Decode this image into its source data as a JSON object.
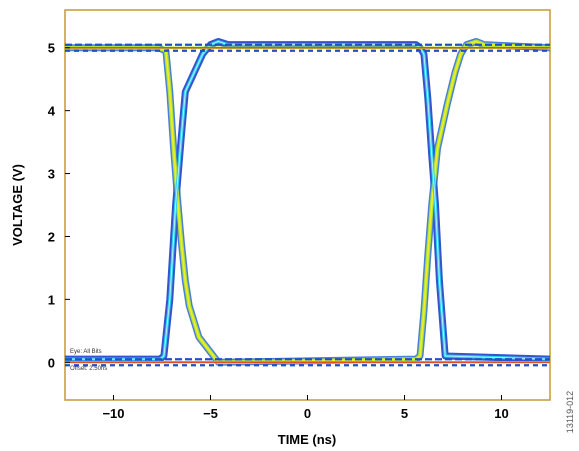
{
  "chart_data": {
    "type": "line",
    "title": "",
    "xlabel": "TIME (ns)",
    "ylabel": "VOLTAGE (V)",
    "xlim": [
      -12.5,
      12.5
    ],
    "ylim": [
      -0.6,
      5.6
    ],
    "x_ticks": [
      -10,
      -5,
      0,
      5,
      10
    ],
    "x_tick_labels": [
      "−10",
      "−5",
      "0",
      "5",
      "10"
    ],
    "y_ticks": [
      0,
      1,
      2,
      3,
      4,
      5
    ],
    "y_tick_labels": [
      "0",
      "1",
      "2",
      "3",
      "4",
      "5"
    ],
    "grid": false,
    "legend": "none",
    "high_level": 5.0,
    "low_level": 0.0,
    "series": [
      {
        "x": [
          -12.5,
          -7.6,
          -7.4,
          -7.1,
          -6.8,
          -6.5,
          -6.3,
          -5.4,
          -5.0,
          -4.6,
          -4.1,
          5.6,
          5.8,
          6.0,
          6.2,
          6.4,
          6.6,
          6.8,
          7.1,
          12.5
        ],
        "y": [
          0.05,
          0.05,
          0.1,
          1.0,
          2.5,
          3.6,
          4.3,
          4.9,
          5.05,
          5.1,
          5.05,
          5.05,
          5.0,
          4.9,
          4.2,
          3.3,
          2.5,
          1.3,
          0.1,
          0.05
        ],
        "color_range": [
          "#1840c0",
          "#20d8f0"
        ]
      },
      {
        "x": [
          -12.5,
          -7.7,
          -7.3,
          -7.1,
          -6.9,
          -6.7,
          -6.5,
          -6.3,
          -6.1,
          -5.6,
          -4.6,
          5.6,
          5.8,
          6.0,
          6.2,
          6.4,
          6.7,
          7.2,
          7.6,
          7.9,
          8.2,
          8.7,
          9.1,
          12.5
        ],
        "y": [
          5.0,
          5.0,
          4.95,
          4.3,
          3.4,
          2.6,
          1.9,
          1.3,
          0.9,
          0.4,
          0.0,
          0.05,
          0.1,
          0.8,
          1.7,
          2.5,
          3.4,
          4.1,
          4.6,
          4.9,
          5.05,
          5.1,
          5.05,
          5.0
        ],
        "color_range": [
          "#a0e040",
          "#f0f020"
        ]
      }
    ],
    "annotations": [
      "Eye: All Bits",
      "Offset: 2.50ns"
    ],
    "figure_id": "13119-012"
  },
  "colors": {
    "frame": "#c8a040",
    "level_line": "#e05020",
    "low_band": "#2050c8",
    "edge_trace": "#2040c8",
    "edge_core": "#30d0f0",
    "edge_trace_2": "#b0e040",
    "edge_core_2": "#f0f020"
  }
}
